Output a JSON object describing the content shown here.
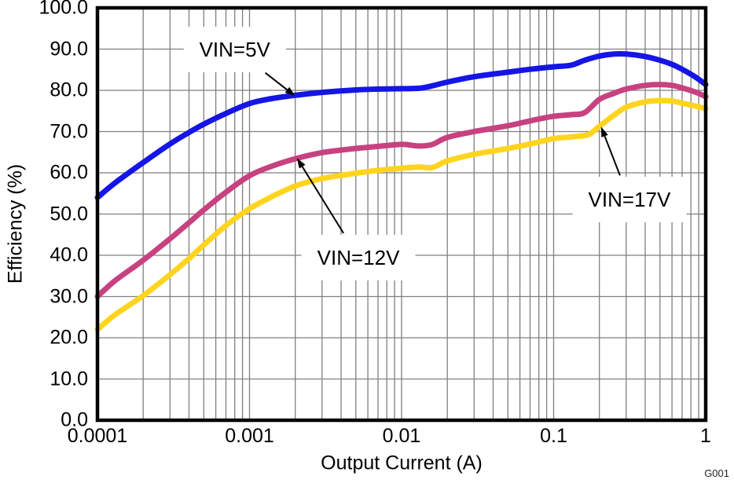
{
  "chart_data": {
    "type": "line",
    "title": "",
    "xlabel": "Output Current (A)",
    "ylabel": "Efficiency (%)",
    "xscale": "log",
    "xlim": [
      0.0001,
      1
    ],
    "ylim": [
      0,
      100
    ],
    "grid": {
      "major": true,
      "minor_x": true,
      "color": "#7f7f7f"
    },
    "background": "#ffffff",
    "border_color": "#000000",
    "x_ticks": [
      {
        "value": 0.0001,
        "label": "0.0001"
      },
      {
        "value": 0.001,
        "label": "0.001"
      },
      {
        "value": 0.01,
        "label": "0.01"
      },
      {
        "value": 0.1,
        "label": "0.1"
      },
      {
        "value": 1,
        "label": "1"
      }
    ],
    "y_ticks": [
      {
        "value": 100,
        "label": "100.0"
      },
      {
        "value": 90,
        "label": "90.0"
      },
      {
        "value": 80,
        "label": "80.0"
      },
      {
        "value": 70,
        "label": "70.0"
      },
      {
        "value": 60,
        "label": "60.0"
      },
      {
        "value": 50,
        "label": "50.0"
      },
      {
        "value": 40,
        "label": "40.0"
      },
      {
        "value": 30,
        "label": "30.0"
      },
      {
        "value": 20,
        "label": "20.0"
      },
      {
        "value": 10,
        "label": "10.0"
      },
      {
        "value": 0,
        "label": "0.0"
      }
    ],
    "series": [
      {
        "name": "VIN=5V",
        "color": "#1515E6",
        "points": [
          [
            0.0001,
            54
          ],
          [
            0.00013,
            57.5
          ],
          [
            0.0002,
            62.5
          ],
          [
            0.0003,
            67
          ],
          [
            0.0004,
            69.8
          ],
          [
            0.0005,
            71.8
          ],
          [
            0.0007,
            74.4
          ],
          [
            0.001,
            76.8
          ],
          [
            0.0014,
            78
          ],
          [
            0.002,
            78.8
          ],
          [
            0.003,
            79.5
          ],
          [
            0.005,
            80.1
          ],
          [
            0.007,
            80.3
          ],
          [
            0.01,
            80.4
          ],
          [
            0.013,
            80.5
          ],
          [
            0.016,
            81.1
          ],
          [
            0.02,
            82
          ],
          [
            0.03,
            83.3
          ],
          [
            0.05,
            84.4
          ],
          [
            0.07,
            85.1
          ],
          [
            0.1,
            85.7
          ],
          [
            0.13,
            86.1
          ],
          [
            0.16,
            87.3
          ],
          [
            0.2,
            88.3
          ],
          [
            0.25,
            88.8
          ],
          [
            0.3,
            88.8
          ],
          [
            0.4,
            88.2
          ],
          [
            0.5,
            87.3
          ],
          [
            0.6,
            86.3
          ],
          [
            0.7,
            85.1
          ],
          [
            0.85,
            83.3
          ],
          [
            1,
            81.4
          ]
        ]
      },
      {
        "name": "VIN=12V",
        "color": "#C84180",
        "points": [
          [
            0.0001,
            30
          ],
          [
            0.00013,
            33.8
          ],
          [
            0.0002,
            38.8
          ],
          [
            0.0003,
            44
          ],
          [
            0.0004,
            47.9
          ],
          [
            0.0005,
            51
          ],
          [
            0.0007,
            55.3
          ],
          [
            0.001,
            59.3
          ],
          [
            0.0014,
            61.6
          ],
          [
            0.002,
            63.4
          ],
          [
            0.003,
            64.9
          ],
          [
            0.005,
            65.9
          ],
          [
            0.007,
            66.4
          ],
          [
            0.01,
            66.9
          ],
          [
            0.013,
            66.5
          ],
          [
            0.016,
            66.9
          ],
          [
            0.02,
            68.6
          ],
          [
            0.03,
            70
          ],
          [
            0.05,
            71.4
          ],
          [
            0.07,
            72.6
          ],
          [
            0.1,
            73.7
          ],
          [
            0.13,
            74.1
          ],
          [
            0.16,
            74.6
          ],
          [
            0.2,
            77.8
          ],
          [
            0.25,
            79.3
          ],
          [
            0.3,
            80.3
          ],
          [
            0.4,
            81.2
          ],
          [
            0.5,
            81.4
          ],
          [
            0.6,
            81.2
          ],
          [
            0.7,
            80.6
          ],
          [
            0.85,
            79.6
          ],
          [
            1,
            78.5
          ]
        ]
      },
      {
        "name": "VIN=17V",
        "color": "#FFD41E",
        "points": [
          [
            0.0001,
            22
          ],
          [
            0.00013,
            25.5
          ],
          [
            0.0002,
            30.2
          ],
          [
            0.0003,
            35.3
          ],
          [
            0.0004,
            39.2
          ],
          [
            0.0005,
            42.5
          ],
          [
            0.0007,
            47.2
          ],
          [
            0.001,
            51.3
          ],
          [
            0.0014,
            54.2
          ],
          [
            0.002,
            56.8
          ],
          [
            0.003,
            58.6
          ],
          [
            0.005,
            59.9
          ],
          [
            0.007,
            60.6
          ],
          [
            0.01,
            61.1
          ],
          [
            0.013,
            61.4
          ],
          [
            0.016,
            61.3
          ],
          [
            0.02,
            62.9
          ],
          [
            0.03,
            64.5
          ],
          [
            0.05,
            65.9
          ],
          [
            0.07,
            67
          ],
          [
            0.1,
            68.3
          ],
          [
            0.13,
            68.7
          ],
          [
            0.17,
            69.3
          ],
          [
            0.2,
            71.3
          ],
          [
            0.25,
            74
          ],
          [
            0.3,
            75.9
          ],
          [
            0.4,
            77.2
          ],
          [
            0.5,
            77.5
          ],
          [
            0.6,
            77.4
          ],
          [
            0.7,
            76.9
          ],
          [
            0.85,
            76.2
          ],
          [
            1,
            75.6
          ]
        ]
      }
    ],
    "annotations": [
      {
        "label": "VIN=5V",
        "label_x": 0.0008,
        "label_y": 90,
        "target_x": 0.002,
        "target_y": 78.6
      },
      {
        "label": "VIN=12V",
        "label_x": 0.0052,
        "label_y": 39.5,
        "target_x": 0.00205,
        "target_y": 63.6
      },
      {
        "label": "VIN=17V",
        "label_x": 0.315,
        "label_y": 53.5,
        "target_x": 0.205,
        "target_y": 71.2
      }
    ],
    "watermark": "G001"
  }
}
